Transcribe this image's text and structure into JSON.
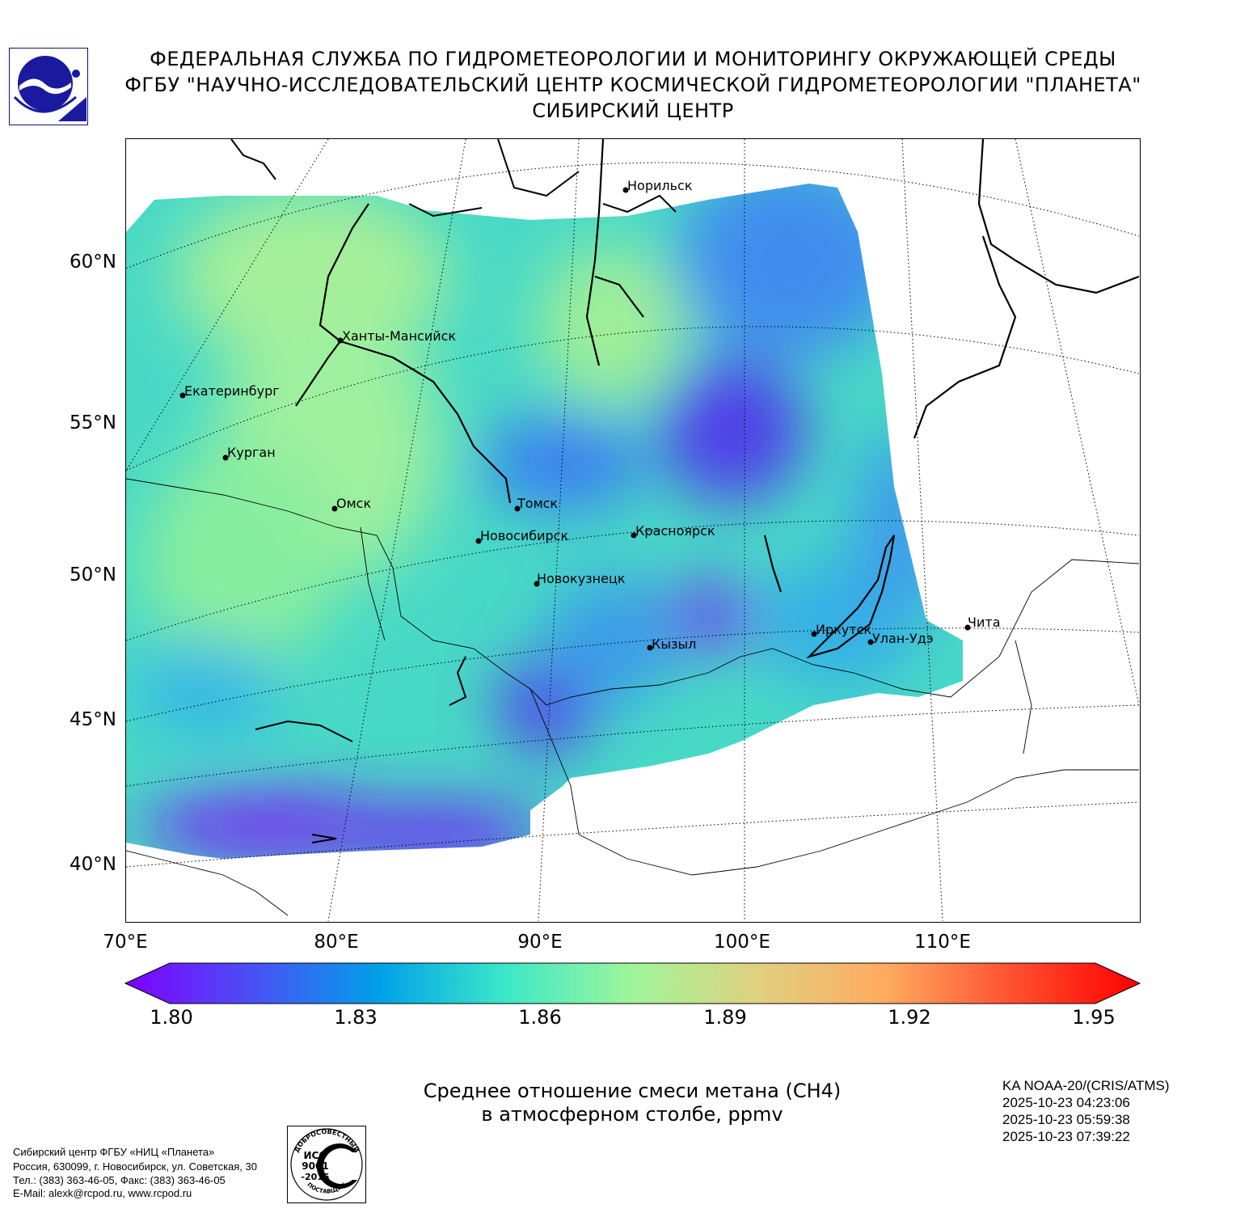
{
  "header": {
    "line1": "ФЕДЕРАЛЬНАЯ СЛУЖБА ПО ГИДРОМЕТЕОРОЛОГИИ И МОНИТОРИНГУ ОКРУЖАЮЩЕЙ СРЕДЫ",
    "line2": "ФГБУ \"НАУЧНО-ИССЛЕДОВАТЕЛЬСКИЙ ЦЕНТР КОСМИЧЕСКОЙ ГИДРОМЕТЕОРОЛОГИИ \"ПЛАНЕТА\"",
    "line3": "СИБИРСКИЙ ЦЕНТР"
  },
  "map": {
    "lat_labels": [
      "60°N",
      "55°N",
      "50°N",
      "45°N",
      "40°N"
    ],
    "lon_labels": [
      "70°E",
      "80°E",
      "90°E",
      "100°E",
      "110°E"
    ],
    "cities": {
      "norilsk": "Норильск",
      "khanty": "Ханты-Мансийск",
      "ekaterinburg": "Екатеринбург",
      "kurgan": "Курган",
      "omsk": "Омск",
      "tomsk": "Томск",
      "novosibirsk": "Новосибирск",
      "krasnoyarsk": "Красноярск",
      "novokuznetsk": "Новокузнецк",
      "kyzyl": "Кызыл",
      "irkutsk": "Иркутск",
      "ulanude": "Улан-Удэ",
      "chita": "Чита"
    }
  },
  "colorbar": {
    "ticks": [
      "1.80",
      "1.83",
      "1.86",
      "1.89",
      "1.92",
      "1.95"
    ],
    "min": 1.8,
    "max": 1.95,
    "colormap": [
      "#7f00ff",
      "#4a50f5",
      "#00a0e8",
      "#3ce8c8",
      "#9ff59a",
      "#e0d080",
      "#ffaa60",
      "#ff5030",
      "#ff0000"
    ]
  },
  "caption": {
    "line1": "Среднее отношение смеси метана (CH4)",
    "line2": "в атмосферном столбе, ppmv"
  },
  "satellite": {
    "name": "KA NOAA-20/(CRIS/ATMS)",
    "time1": "2025-10-23 04:23:06",
    "time2": "2025-10-23 05:59:38",
    "time3": "2025-10-23 07:39:22"
  },
  "footer": {
    "line1": "Сибирский центр ФГБУ «НИЦ «Планета»",
    "line2": "Россия, 630099, г. Новосибирск, ул. Советская, 30",
    "line3": "Тел.: (383) 363-46-05, Факс: (383) 363-46-05",
    "line4": "E-Mail: alexk@rcpod.ru, www.rcpod.ru"
  },
  "logos": {
    "iso_line1": "ИСО",
    "iso_line2": "9001",
    "iso_line3": "-2015",
    "iso_arc_top": "ДОБРОСОВЕСТНЫЙ",
    "iso_arc_bottom": "ПОСТАВЩИК"
  }
}
